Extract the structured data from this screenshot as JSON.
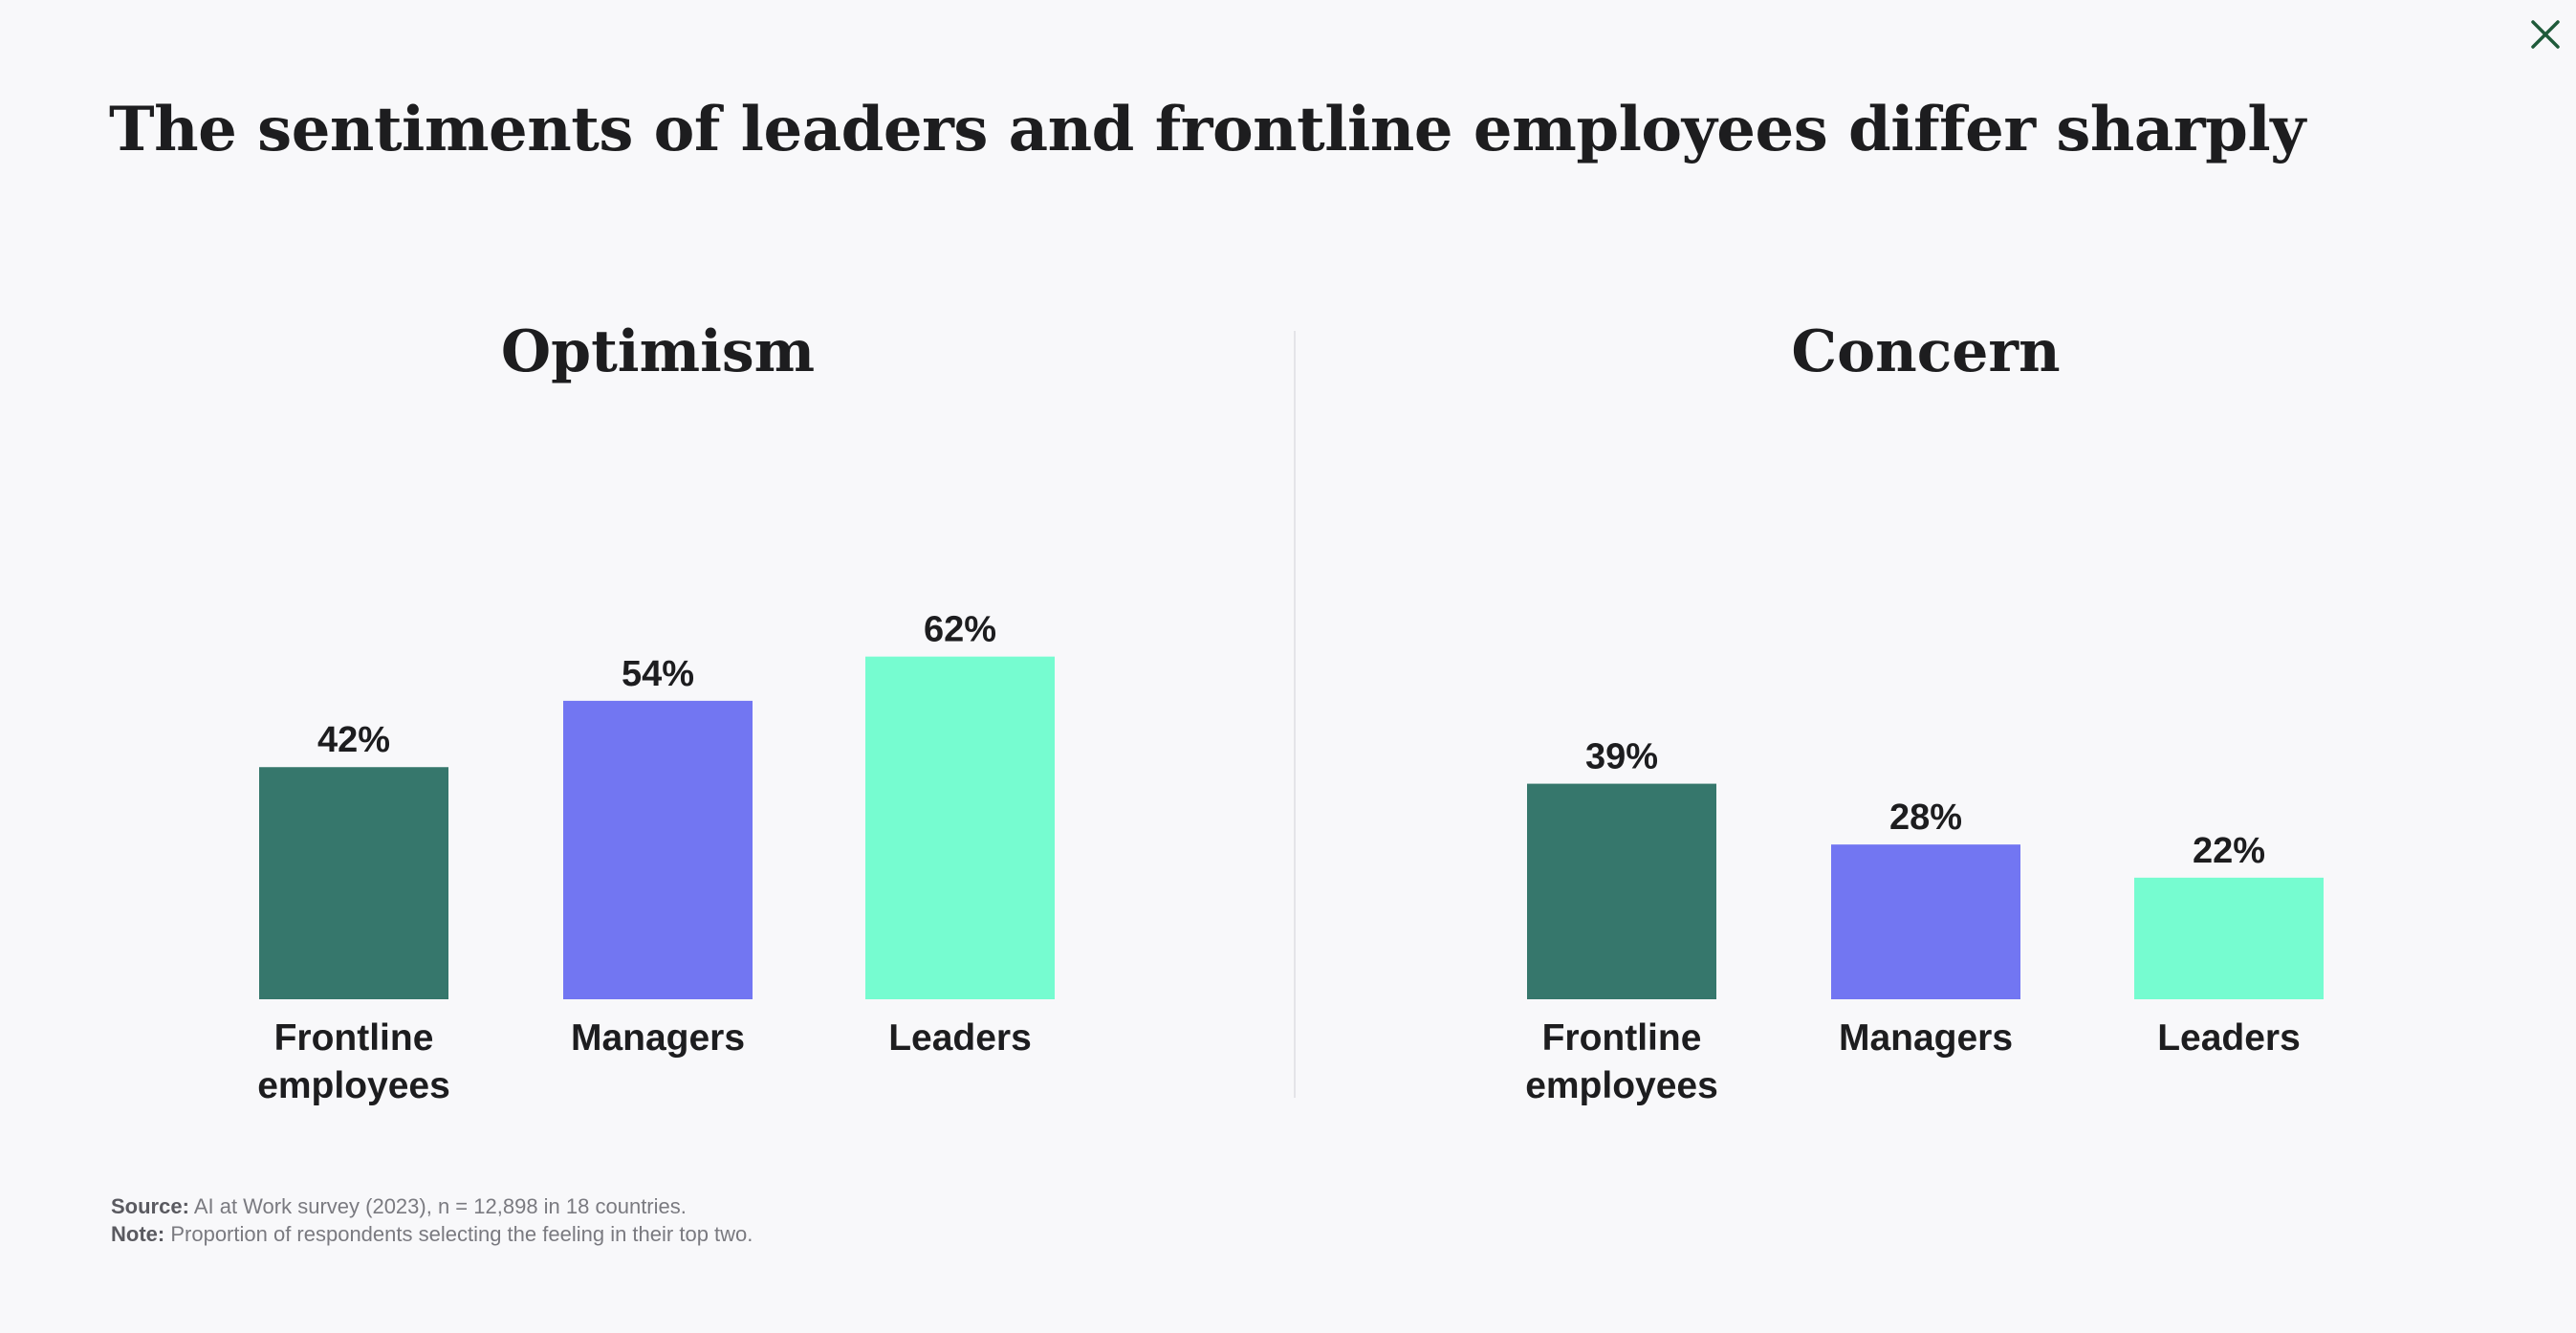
{
  "title": "The sentiments of leaders and frontline employees differ sharply",
  "close_icon": "close-icon",
  "colors": {
    "frontline": "#36776c",
    "managers": "#7276f2",
    "leaders": "#76fcd0",
    "background": "#f8f8fa",
    "text": "#1d1d1f",
    "close_icon": "#1f5a3a"
  },
  "chart_data": [
    {
      "type": "bar",
      "title": "Optimism",
      "categories": [
        "Frontline employees",
        "Managers",
        "Leaders"
      ],
      "values": [
        42,
        54,
        62
      ],
      "value_labels": [
        "42%",
        "54%",
        "62%"
      ],
      "unit": "%",
      "xlabel": "",
      "ylabel": "",
      "grid": false
    },
    {
      "type": "bar",
      "title": "Concern",
      "categories": [
        "Frontline employees",
        "Managers",
        "Leaders"
      ],
      "values": [
        39,
        28,
        22
      ],
      "value_labels": [
        "39%",
        "28%",
        "22%"
      ],
      "unit": "%",
      "xlabel": "",
      "ylabel": "",
      "grid": false
    }
  ],
  "footnotes": {
    "source_label": "Source:",
    "source_text": "AI at Work survey (2023), n = 12,898 in 18 countries.",
    "note_label": "Note:",
    "note_text": "Proportion of respondents selecting the feeling in their top two."
  }
}
